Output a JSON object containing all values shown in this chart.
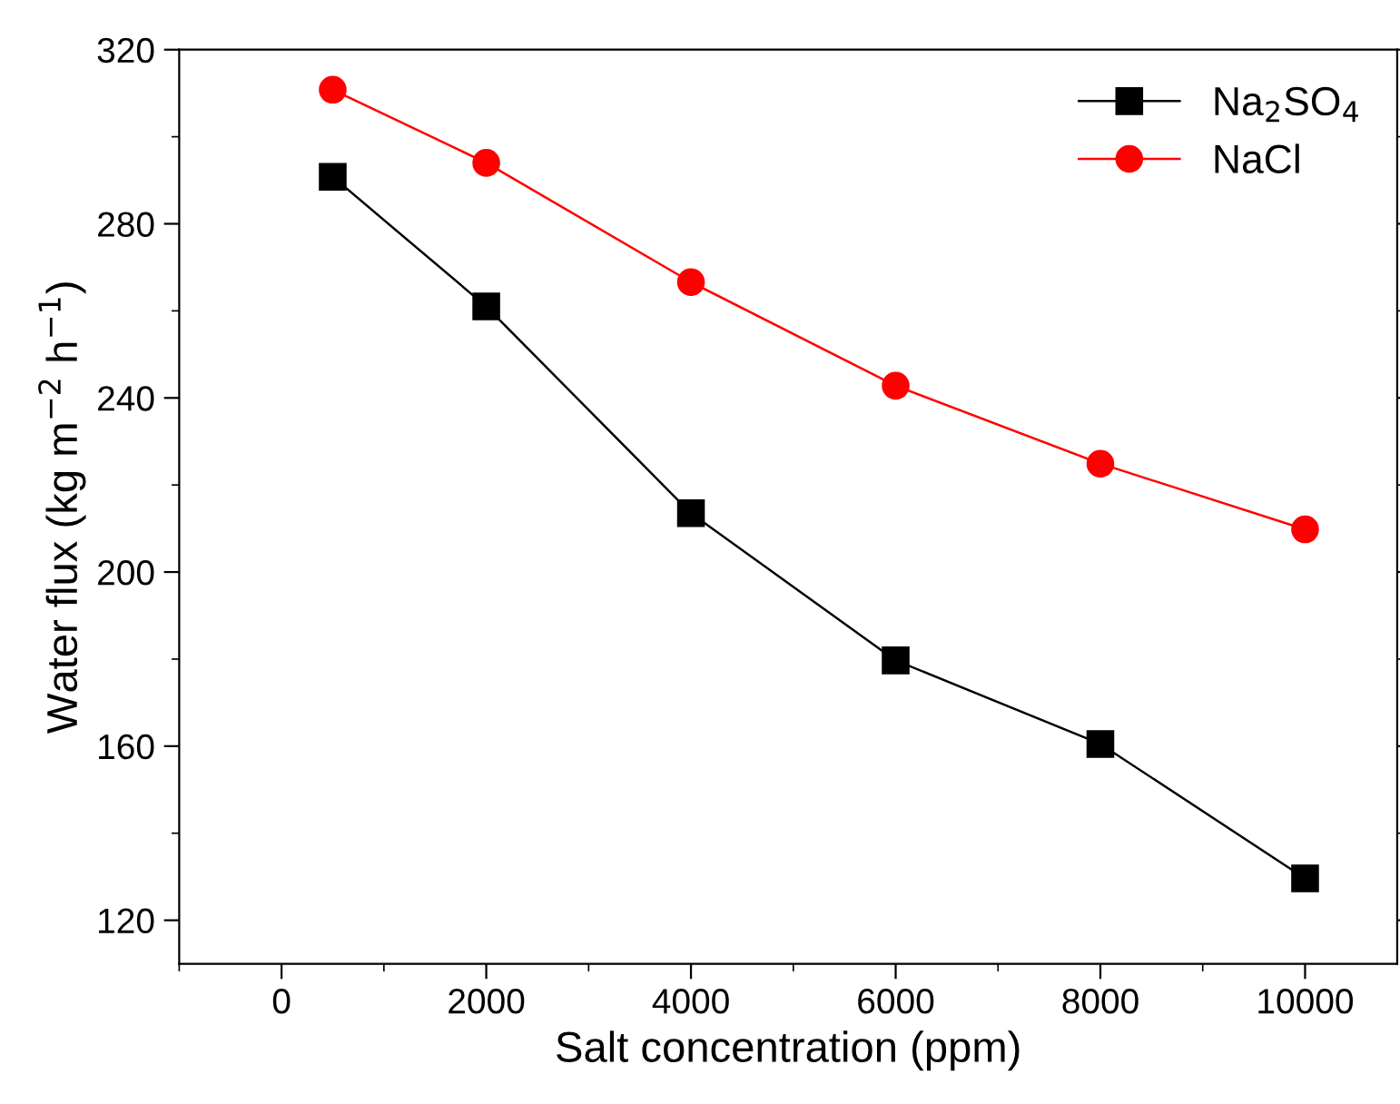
{
  "chart_data": {
    "type": "line",
    "xlabel": "Salt concentration (ppm)",
    "ylabel": "Water flux (kg m$^{−2}$ h$^{−1}$)",
    "x": [
      500,
      2000,
      4000,
      6000,
      8000,
      10000
    ],
    "series": [
      {
        "name": "Na$_{2}$SO$_{4}$",
        "color": "#000000",
        "marker": "square",
        "values": [
          290.8,
          261,
          213.5,
          179.7,
          160.5,
          129.6
        ]
      },
      {
        "name": "NaCl",
        "color": "#ff0000",
        "marker": "circle",
        "values": [
          310.8,
          294,
          266.6,
          242.8,
          224.9,
          209.8
        ]
      }
    ],
    "xlim": [
      -1000,
      10900
    ],
    "ylim": [
      110,
      320
    ],
    "xticks": [
      0,
      2000,
      4000,
      6000,
      8000,
      10000
    ],
    "yticks": [
      120,
      160,
      200,
      240,
      280,
      320
    ],
    "grid": false,
    "legend": "top right",
    "line_style": "solid"
  }
}
